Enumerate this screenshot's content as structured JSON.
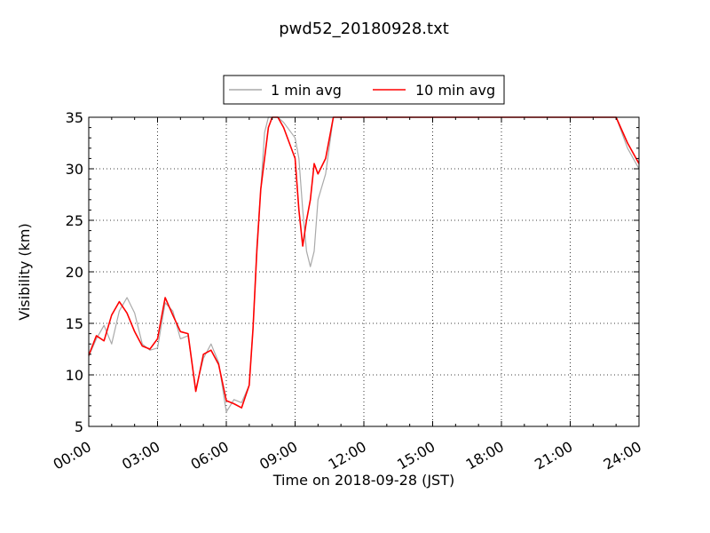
{
  "chart_data": {
    "type": "line",
    "title": "pwd52_20180928.txt",
    "xlabel": "Time on 2018-09-28 (JST)",
    "ylabel": "Visibility (km)",
    "xlim": [
      "00:00",
      "24:00"
    ],
    "ylim": [
      5,
      35
    ],
    "x_ticks": [
      "00:00",
      "03:00",
      "06:00",
      "09:00",
      "12:00",
      "15:00",
      "18:00",
      "21:00",
      "24:00"
    ],
    "y_ticks": [
      "5",
      "10",
      "15",
      "20",
      "25",
      "30",
      "35"
    ],
    "grid": true,
    "legend_placement": "top-center",
    "series": [
      {
        "name": "1 min avg",
        "color": "#aaaaaa",
        "x": [
          "00:00",
          "00:20",
          "00:40",
          "01:00",
          "01:20",
          "01:40",
          "02:00",
          "02:20",
          "02:40",
          "03:00",
          "03:20",
          "03:40",
          "04:00",
          "04:20",
          "04:40",
          "05:00",
          "05:20",
          "05:40",
          "06:00",
          "06:20",
          "06:40",
          "07:00",
          "07:10",
          "07:20",
          "07:30",
          "07:40",
          "07:50",
          "08:00",
          "08:15",
          "08:30",
          "09:00",
          "09:10",
          "09:20",
          "09:30",
          "09:40",
          "09:50",
          "10:00",
          "10:20",
          "10:40",
          "11:00",
          "11:20",
          "11:40",
          "12:00",
          "13:00",
          "14:00",
          "15:00",
          "16:00",
          "17:00",
          "18:00",
          "19:00",
          "20:00",
          "21:00",
          "22:00",
          "23:00",
          "23:30",
          "24:00"
        ],
        "y": [
          11.8,
          13.5,
          14.8,
          13.0,
          16.2,
          17.5,
          16.0,
          13.0,
          12.4,
          12.6,
          17.0,
          16.2,
          13.5,
          13.8,
          8.6,
          11.6,
          13.0,
          11.2,
          6.4,
          7.6,
          7.3,
          9.0,
          14.5,
          22.5,
          28.0,
          33.5,
          35.0,
          35.0,
          35.0,
          34.5,
          33.0,
          31.0,
          26.0,
          22.0,
          20.5,
          22.0,
          27.0,
          29.5,
          35.0,
          35.0,
          35.0,
          35.0,
          35.0,
          35.0,
          35.0,
          35.0,
          35.0,
          35.0,
          35.0,
          35.0,
          35.0,
          35.0,
          35.0,
          35.0,
          32.0,
          30.0
        ]
      },
      {
        "name": "10 min avg",
        "color": "#ff0000",
        "x": [
          "00:00",
          "00:20",
          "00:40",
          "01:00",
          "01:20",
          "01:40",
          "02:00",
          "02:20",
          "02:40",
          "03:00",
          "03:20",
          "03:40",
          "04:00",
          "04:20",
          "04:40",
          "05:00",
          "05:20",
          "05:40",
          "06:00",
          "06:20",
          "06:40",
          "07:00",
          "07:10",
          "07:20",
          "07:30",
          "07:40",
          "07:50",
          "08:00",
          "08:15",
          "08:30",
          "09:00",
          "09:10",
          "09:20",
          "09:30",
          "09:40",
          "09:50",
          "10:00",
          "10:20",
          "10:40",
          "11:00",
          "11:20",
          "11:40",
          "12:00",
          "13:00",
          "14:00",
          "15:00",
          "16:00",
          "17:00",
          "18:00",
          "19:00",
          "20:00",
          "21:00",
          "22:00",
          "23:00",
          "23:30",
          "24:00"
        ],
        "y": [
          11.9,
          13.8,
          13.3,
          15.8,
          17.1,
          16.0,
          14.2,
          12.8,
          12.5,
          13.5,
          17.5,
          15.8,
          14.2,
          14.0,
          8.4,
          12.0,
          12.4,
          11.0,
          7.5,
          7.2,
          6.8,
          9.0,
          14.5,
          22.0,
          28.0,
          31.0,
          34.0,
          35.0,
          35.0,
          34.0,
          31.0,
          26.0,
          22.5,
          25.0,
          27.0,
          30.5,
          29.5,
          31.0,
          35.0,
          35.0,
          35.0,
          35.0,
          35.0,
          35.0,
          35.0,
          35.0,
          35.0,
          35.0,
          35.0,
          35.0,
          35.0,
          35.0,
          35.0,
          35.0,
          32.5,
          30.5
        ]
      }
    ]
  }
}
